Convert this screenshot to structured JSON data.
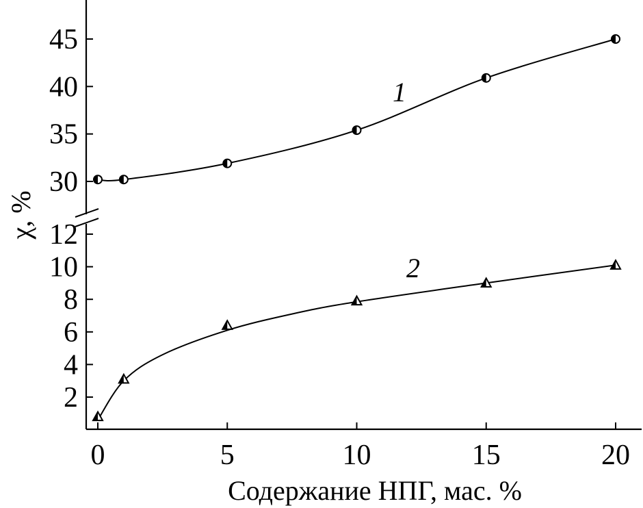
{
  "chart_data": {
    "type": "scatter",
    "xlabel": "Содержание НПГ, мас. %",
    "ylabel": "χ, %",
    "x_ticks": [
      "0",
      "5",
      "10",
      "15",
      "20"
    ],
    "x_tick_values": [
      0,
      5,
      10,
      15,
      20
    ],
    "xlim": [
      -0.4,
      20.9
    ],
    "y_axis_break": true,
    "upper_y": {
      "ylim": [
        27.5,
        49
      ],
      "ticks": [
        "30",
        "35",
        "40",
        "45"
      ],
      "tick_values": [
        30,
        35,
        40,
        45
      ]
    },
    "lower_y": {
      "ylim": [
        0,
        12.8
      ],
      "ticks": [
        "2",
        "4",
        "6",
        "8",
        "10",
        "12"
      ],
      "tick_values": [
        2,
        4,
        6,
        8,
        10,
        12
      ]
    },
    "series": [
      {
        "name": "1",
        "marker": "half-filled-circle",
        "panel": "upper",
        "x": [
          0,
          1,
          5,
          10,
          15,
          20
        ],
        "y": [
          30.2,
          30.2,
          31.9,
          35.4,
          40.9,
          45.0
        ]
      },
      {
        "name": "2",
        "marker": "half-filled-triangle",
        "panel": "lower",
        "x": [
          0,
          1,
          5,
          10,
          15,
          20
        ],
        "y": [
          0.8,
          3.1,
          6.4,
          7.9,
          9.0,
          10.1
        ]
      }
    ],
    "grid": false,
    "legend": "none",
    "colors": {
      "ink": "#000000",
      "background": "#ffffff"
    }
  }
}
